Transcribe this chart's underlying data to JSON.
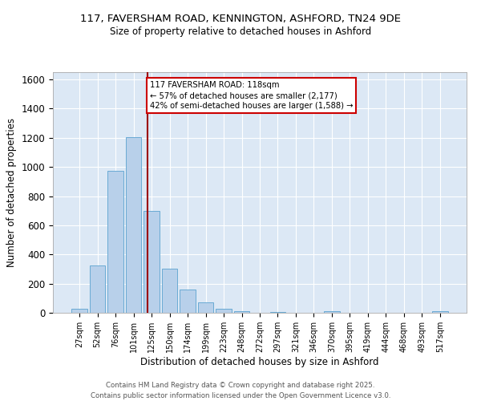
{
  "title1": "117, FAVERSHAM ROAD, KENNINGTON, ASHFORD, TN24 9DE",
  "title2": "Size of property relative to detached houses in Ashford",
  "xlabel": "Distribution of detached houses by size in Ashford",
  "ylabel": "Number of detached properties",
  "bar_labels": [
    "27sqm",
    "52sqm",
    "76sqm",
    "101sqm",
    "125sqm",
    "150sqm",
    "174sqm",
    "199sqm",
    "223sqm",
    "248sqm",
    "272sqm",
    "297sqm",
    "321sqm",
    "346sqm",
    "370sqm",
    "395sqm",
    "419sqm",
    "444sqm",
    "468sqm",
    "493sqm",
    "517sqm"
  ],
  "bar_values": [
    25,
    325,
    975,
    1205,
    700,
    305,
    158,
    73,
    28,
    13,
    0,
    7,
    0,
    0,
    12,
    0,
    0,
    0,
    0,
    0,
    12
  ],
  "bar_color": "#b8d0ea",
  "bar_edgecolor": "#6aaad4",
  "vline_x": 3.77,
  "vline_color": "#9b0000",
  "annotation_title": "117 FAVERSHAM ROAD: 118sqm",
  "annotation_line1": "← 57% of detached houses are smaller (2,177)",
  "annotation_line2": "42% of semi-detached houses are larger (1,588) →",
  "annotation_box_facecolor": "#ffffff",
  "annotation_box_edgecolor": "#cc0000",
  "ylim": [
    0,
    1650
  ],
  "yticks": [
    0,
    200,
    400,
    600,
    800,
    1000,
    1200,
    1400,
    1600
  ],
  "background_color": "#dce8f5",
  "grid_color": "#ffffff",
  "footer1": "Contains HM Land Registry data © Crown copyright and database right 2025.",
  "footer2": "Contains public sector information licensed under the Open Government Licence v3.0."
}
